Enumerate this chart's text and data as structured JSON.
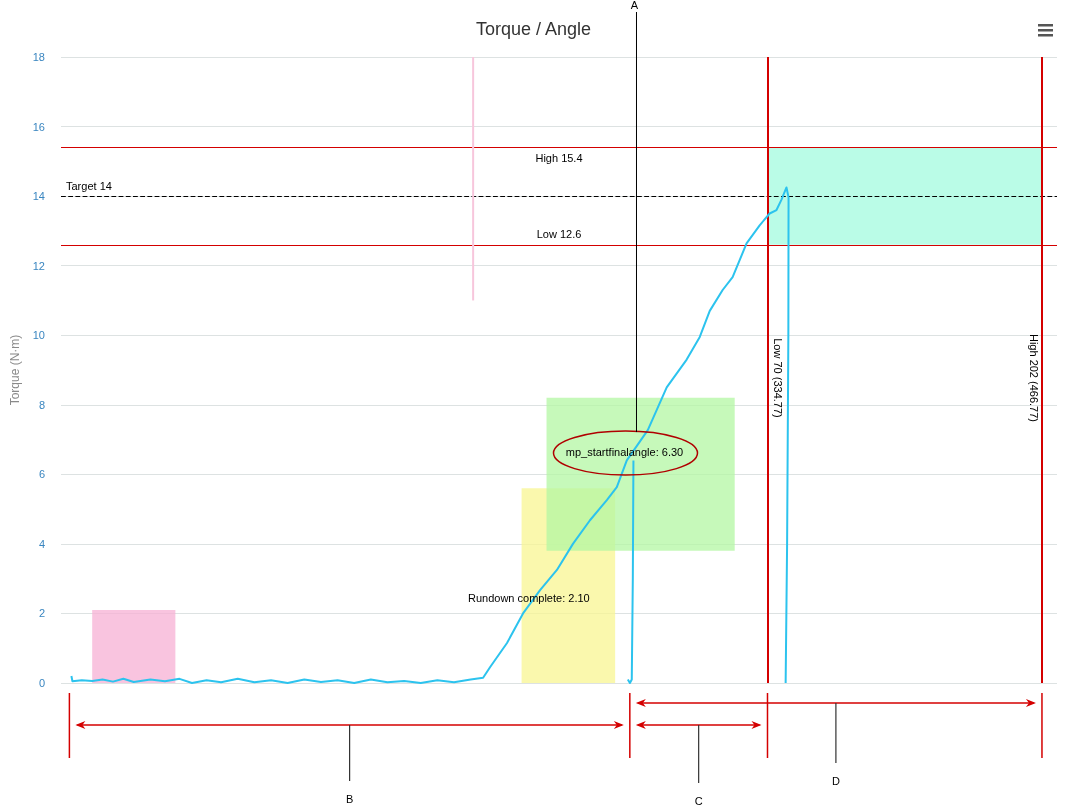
{
  "chart_data": {
    "type": "line",
    "title": "Torque / Angle",
    "ylabel": "Torque (N·m)",
    "xlim": [
      -5,
      474
    ],
    "ylim": [
      0,
      18
    ],
    "yticks": [
      0,
      2,
      4,
      6,
      8,
      10,
      12,
      14,
      16,
      18
    ],
    "grid": "y",
    "tick_labels": "y",
    "marker": "none",
    "series": [
      {
        "type": "area",
        "color": "#f7b0d4",
        "x": [
          10,
          50
        ],
        "lower": [
          0,
          0
        ],
        "upper": [
          2.1,
          2.1
        ],
        "values": [
          null,
          null
        ]
      },
      {
        "type": "area",
        "color": "#f8f592",
        "x": [
          216.5,
          261.5
        ],
        "lower": [
          0,
          0
        ],
        "upper": [
          5.6,
          5.6
        ],
        "values": [
          null,
          null
        ]
      },
      {
        "type": "area",
        "color": "#b3f7a3",
        "x": [
          228.5,
          319
        ],
        "lower": [
          3.8,
          3.8
        ],
        "upper": [
          8.2,
          8.2
        ],
        "values": [
          null,
          null
        ]
      },
      {
        "type": "area",
        "color": "#a3fbdf",
        "x": [
          334.77,
          466.77
        ],
        "lower": [
          12.6,
          12.6
        ],
        "upper": [
          15.4,
          15.4
        ],
        "values": [
          null,
          null
        ]
      },
      {
        "color": "#f7c6dc",
        "x": [
          193.2,
          193.2
        ],
        "values": [
          11,
          18
        ]
      },
      {
        "color": "#2cc3ee",
        "x": [
          0,
          0.5,
          5,
          10,
          15,
          20,
          25,
          30,
          38,
          45,
          52,
          58,
          65,
          72,
          80,
          88,
          96,
          104,
          112,
          120,
          128,
          136,
          144,
          152,
          160,
          168,
          176,
          184,
          192,
          198,
          201.4,
          209.5,
          217.2,
          225.4,
          233.5,
          241.2,
          249.4,
          257.5,
          262.3,
          267.1,
          277.2,
          286.3,
          295.9,
          302.2,
          307,
          313.2,
          318,
          324.7,
          331,
          335.8,
          339.1,
          341.5,
          343.9,
          344.9,
          344.8,
          344.2,
          343.5
        ],
        "values": [
          0.2,
          0.05,
          0.08,
          0.06,
          0.1,
          0.04,
          0.12,
          0.03,
          0.1,
          0.05,
          0.12,
          0,
          0.08,
          0.02,
          0.12,
          0.02,
          0.08,
          0,
          0.1,
          0.03,
          0.08,
          0,
          0.1,
          0.02,
          0.06,
          0,
          0.08,
          0.02,
          0.1,
          0.15,
          0.46,
          1.15,
          2,
          2.67,
          3.25,
          4,
          4.68,
          5.26,
          5.63,
          6.4,
          7.27,
          8.5,
          9.3,
          9.95,
          10.7,
          11.3,
          11.67,
          12.64,
          13.16,
          13.5,
          13.6,
          13.9,
          14.25,
          13.96,
          10,
          4,
          0
        ]
      },
      {
        "color": "#2cc3ee",
        "x": [
          267.6,
          268.6,
          269.5,
          270,
          270.3
        ],
        "values": [
          0.1,
          0,
          0.1,
          3,
          6.4
        ]
      }
    ],
    "ref_lines": [
      {
        "axis": "y",
        "value": 15.4,
        "label": "High 15.4",
        "color": "#d40000"
      },
      {
        "axis": "y",
        "value": 14,
        "label": "Target 14",
        "color": "#000000",
        "line_style": "dashed"
      },
      {
        "axis": "y",
        "value": 12.6,
        "label": "Low 12.6",
        "color": "#d40000"
      },
      {
        "axis": "x",
        "value": 334.77,
        "label": "Low 70 (334.77)",
        "color": "#d40000"
      },
      {
        "axis": "x",
        "value": 466.77,
        "label": "High 202 (466.77)",
        "color": "#d40000"
      }
    ],
    "annotations": [
      {
        "text": "Rundown complete: 2.10",
        "x": 220,
        "y": 2.45
      },
      {
        "text": "mp_startfinalangle: 6.30",
        "x": 266,
        "y": 6.64
      },
      "A",
      "B",
      "C",
      "D"
    ]
  }
}
